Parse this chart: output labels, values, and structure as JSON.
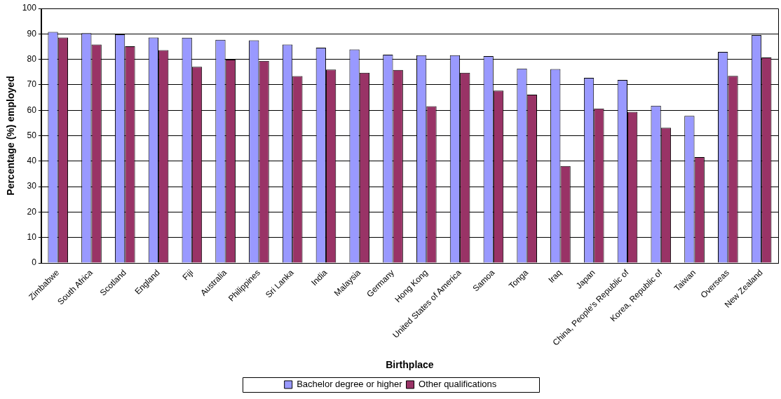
{
  "chart_data": {
    "type": "bar",
    "xlabel": "Birthplace",
    "ylabel": "Percentage (%) employed",
    "categories": [
      "Zimbabwe",
      "South Africa",
      "Scotland",
      "England",
      "Fiji",
      "Australia",
      "Philippines",
      "Sri Lanka",
      "India",
      "Malaysia",
      "Germany",
      "Hong Kong",
      "United States of America",
      "Samoa",
      "Tonga",
      "Iraq",
      "Japan",
      "China, People's Republic of",
      "Korea, Republic of",
      "Taiwan",
      "Overseas",
      "New Zealand"
    ],
    "series": [
      {
        "name": "Bachelor degree or higher",
        "color": "#9999ff",
        "values": [
          90.8,
          90.3,
          89.8,
          88.6,
          88.5,
          87.7,
          87.5,
          85.8,
          84.6,
          83.9,
          81.8,
          81.6,
          81.6,
          81.3,
          76.4,
          76.2,
          72.7,
          71.9,
          61.8,
          57.8,
          82.9,
          89.5
        ]
      },
      {
        "name": "Other qualifications",
        "color": "#993366",
        "values": [
          88.6,
          85.8,
          85.1,
          83.6,
          77.1,
          79.9,
          79.4,
          73.4,
          76.0,
          74.7,
          75.8,
          61.6,
          74.7,
          67.7,
          66.1,
          38.1,
          60.7,
          59.4,
          53.1,
          41.6,
          73.5,
          80.7
        ]
      }
    ],
    "ylim": [
      0,
      100
    ],
    "yticks": [
      0,
      10,
      20,
      30,
      40,
      50,
      60,
      70,
      80,
      90,
      100
    ],
    "grid": "y",
    "legend": "bottom"
  }
}
